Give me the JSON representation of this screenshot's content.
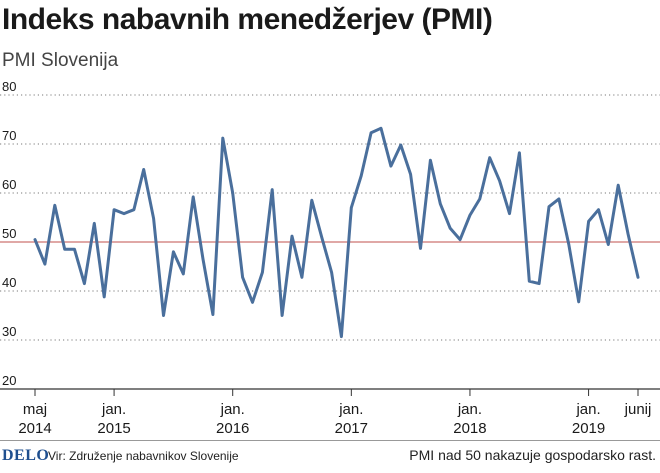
{
  "header": {
    "title": "Indeks nabavnih menedžerjev (PMI)",
    "subtitle": "PMI Slovenija"
  },
  "footer": {
    "logo": "DELO",
    "source": "Vir: Združenje nabavnikov Slovenije",
    "note": "PMI nad 50 nakazuje gospodarsko rast."
  },
  "colors": {
    "line": "#4a6f9c",
    "reference": "#c0504d",
    "grid": "#7a7a7a",
    "text": "#1a1a1a"
  },
  "chart_data": {
    "type": "line",
    "title": "Indeks nabavnih menedžerjev (PMI)",
    "subtitle": "PMI Slovenija",
    "ylim": [
      20,
      80
    ],
    "yticks": [
      20,
      30,
      40,
      50,
      60,
      70,
      80
    ],
    "grid": "dotted horizontal",
    "reference_line": 50,
    "x_start": "2014-05",
    "x_end": "2019-06",
    "xtick_labels": [
      {
        "month": "2014-05",
        "line1": "maj",
        "line2": "2014"
      },
      {
        "month": "2015-01",
        "line1": "jan.",
        "line2": "2015"
      },
      {
        "month": "2016-01",
        "line1": "jan.",
        "line2": "2016"
      },
      {
        "month": "2017-01",
        "line1": "jan.",
        "line2": "2017"
      },
      {
        "month": "2018-01",
        "line1": "jan.",
        "line2": "2018"
      },
      {
        "month": "2019-01",
        "line1": "jan.",
        "line2": "2019"
      },
      {
        "month": "2019-06",
        "line1": "junij",
        "line2": ""
      }
    ],
    "series": [
      {
        "values": [
          50.5,
          45.5,
          57.5,
          48.5,
          48.5,
          41.5,
          53.8,
          38.8,
          56.6,
          55.8,
          56.6,
          64.8,
          54.8,
          35.0,
          48.0,
          43.5,
          59.2,
          46.5,
          35.2,
          71.2,
          60.0,
          42.8,
          37.7,
          43.8,
          60.7,
          35.0,
          51.2,
          42.8,
          58.5,
          51.0,
          43.8,
          30.7,
          57.0,
          63.5,
          72.3,
          73.2,
          65.5,
          69.8,
          63.8,
          48.7,
          66.7,
          57.8,
          52.8,
          50.5,
          55.5,
          58.8,
          67.2,
          62.5,
          55.8,
          68.2,
          42.0,
          41.5,
          57.2,
          58.8,
          49.5,
          37.8,
          54.2,
          56.6,
          49.5,
          61.6,
          51.6,
          42.8
        ]
      }
    ]
  }
}
